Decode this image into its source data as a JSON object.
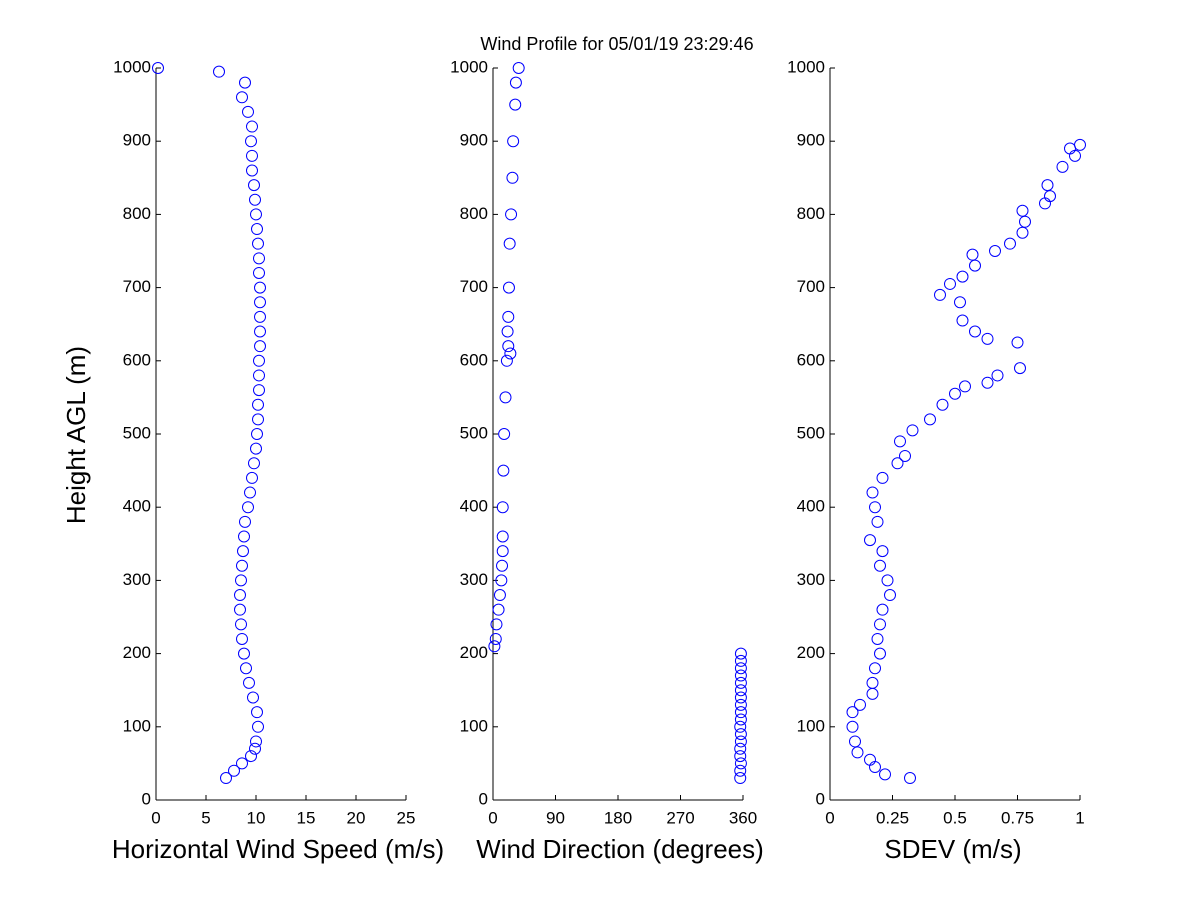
{
  "chart_data": [
    {
      "type": "scatter",
      "title": "Wind Profile for  05/01/19 23:29:46",
      "x_label": "Horizontal Wind Speed (m/s)",
      "y_label": "Height AGL (m)",
      "color": "#0000ff",
      "xlim": [
        0,
        25
      ],
      "xticks": [
        0,
        5,
        10,
        15,
        20,
        25
      ],
      "ylim": [
        0,
        1000
      ],
      "yticks": [
        0,
        100,
        200,
        300,
        400,
        500,
        600,
        700,
        800,
        900,
        1000
      ],
      "x": [
        7.0,
        7.8,
        8.6,
        9.5,
        9.9,
        10.0,
        10.2,
        10.1,
        9.7,
        9.3,
        9.0,
        8.8,
        8.6,
        8.5,
        8.4,
        8.4,
        8.5,
        8.6,
        8.7,
        8.8,
        8.9,
        9.2,
        9.4,
        9.6,
        9.8,
        10.0,
        10.1,
        10.2,
        10.2,
        10.3,
        10.3,
        10.3,
        10.4,
        10.4,
        10.4,
        10.4,
        10.4,
        10.3,
        10.3,
        10.2,
        10.1,
        10.0,
        9.9,
        9.8,
        9.6,
        9.6,
        9.5,
        9.6,
        9.2,
        8.6,
        8.9,
        6.3,
        0.2
      ],
      "values": [
        30,
        40,
        50,
        60,
        70,
        80,
        100,
        120,
        140,
        160,
        180,
        200,
        220,
        240,
        260,
        280,
        300,
        320,
        340,
        360,
        380,
        400,
        420,
        440,
        460,
        480,
        500,
        520,
        540,
        560,
        580,
        600,
        620,
        640,
        660,
        680,
        700,
        720,
        740,
        760,
        780,
        800,
        820,
        840,
        860,
        880,
        900,
        920,
        940,
        960,
        980,
        995,
        1000
      ]
    },
    {
      "type": "scatter",
      "x_label": "Wind Direction (degrees)",
      "color": "#0000ff",
      "xlim": [
        0,
        360
      ],
      "xticks": [
        0,
        90,
        180,
        270,
        360
      ],
      "ylim": [
        0,
        1000
      ],
      "yticks": [
        0,
        100,
        200,
        300,
        400,
        500,
        600,
        700,
        800,
        900,
        1000
      ],
      "x": [
        356,
        356,
        357,
        356,
        356,
        357,
        357,
        356,
        357,
        357,
        357,
        357,
        357,
        357,
        357,
        357,
        357,
        357,
        2,
        4,
        5,
        8,
        10,
        12,
        13,
        14,
        14,
        14,
        15,
        16,
        18,
        20,
        25,
        22,
        21,
        22,
        23,
        24,
        26,
        28,
        29,
        32,
        33,
        37
      ],
      "values": [
        30,
        40,
        50,
        60,
        70,
        80,
        90,
        100,
        110,
        120,
        130,
        140,
        150,
        160,
        170,
        180,
        190,
        200,
        210,
        220,
        240,
        260,
        280,
        300,
        320,
        340,
        360,
        400,
        450,
        500,
        550,
        600,
        610,
        620,
        640,
        660,
        700,
        760,
        800,
        850,
        900,
        950,
        980,
        1000
      ]
    },
    {
      "type": "scatter",
      "x_label": "SDEV  (m/s)",
      "color": "#0000ff",
      "xlim": [
        0,
        1
      ],
      "xticks": [
        0,
        0.25,
        0.5,
        0.75,
        1
      ],
      "ylim": [
        0,
        1000
      ],
      "yticks": [
        0,
        100,
        200,
        300,
        400,
        500,
        600,
        700,
        800,
        900,
        1000
      ],
      "x": [
        0.32,
        0.22,
        0.18,
        0.16,
        0.11,
        0.1,
        0.09,
        0.09,
        0.12,
        0.17,
        0.17,
        0.18,
        0.2,
        0.19,
        0.2,
        0.21,
        0.24,
        0.23,
        0.2,
        0.21,
        0.16,
        0.19,
        0.18,
        0.17,
        0.21,
        0.27,
        0.3,
        0.28,
        0.33,
        0.4,
        0.45,
        0.5,
        0.54,
        0.63,
        0.67,
        0.76,
        0.75,
        0.63,
        0.58,
        0.53,
        0.52,
        0.44,
        0.48,
        0.53,
        0.58,
        0.57,
        0.66,
        0.72,
        0.77,
        0.78,
        0.77,
        0.86,
        0.88,
        0.87,
        0.93,
        0.98,
        0.96,
        1.0
      ],
      "values": [
        30,
        35,
        45,
        55,
        65,
        80,
        100,
        120,
        130,
        145,
        160,
        180,
        200,
        220,
        240,
        260,
        280,
        300,
        320,
        340,
        355,
        380,
        400,
        420,
        440,
        460,
        470,
        490,
        505,
        520,
        540,
        555,
        565,
        570,
        580,
        590,
        625,
        630,
        640,
        655,
        680,
        690,
        705,
        715,
        730,
        745,
        750,
        760,
        775,
        790,
        805,
        815,
        825,
        840,
        865,
        880,
        890,
        895
      ]
    }
  ]
}
